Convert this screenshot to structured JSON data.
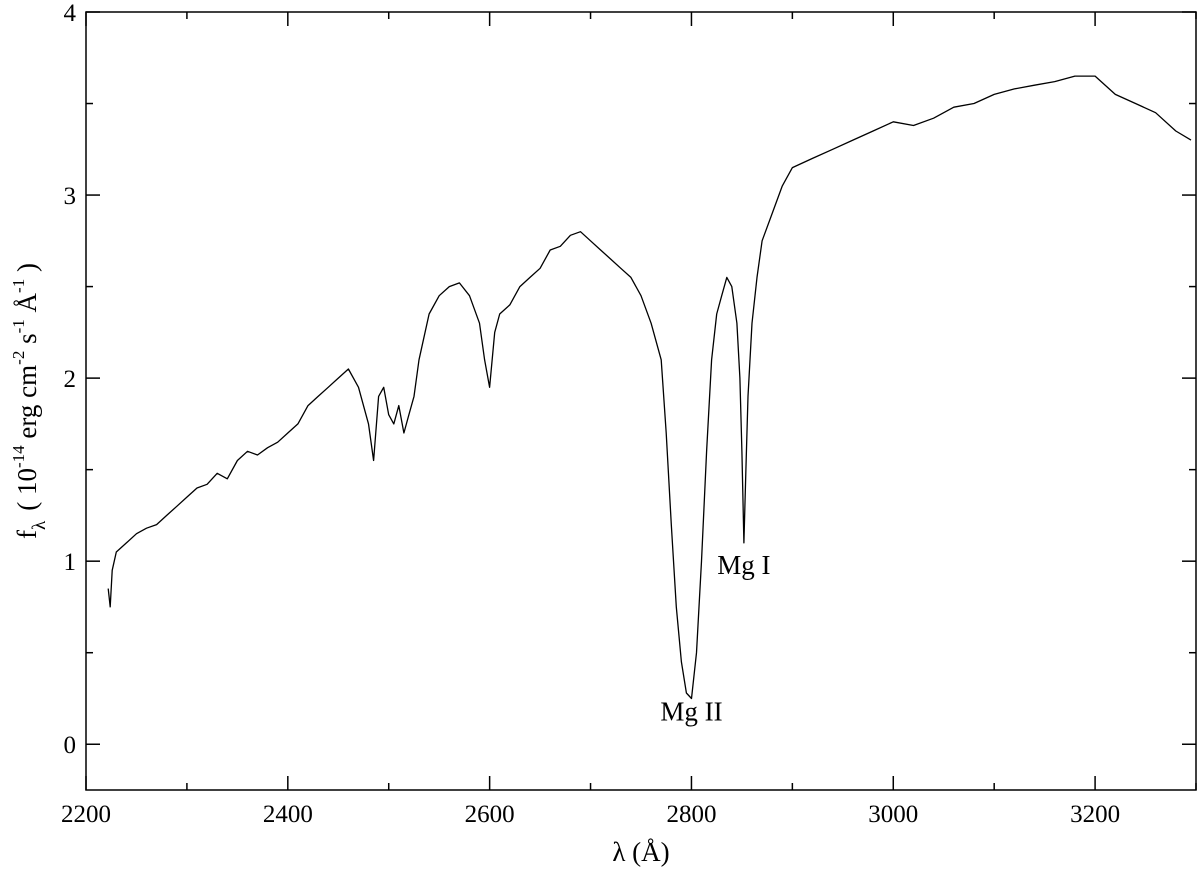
{
  "chart_data": {
    "type": "line",
    "xlabel": "λ (Å)",
    "ylabel": {
      "f": "f",
      "f_sub": "λ",
      "open": "( 10",
      "exp1": "-14",
      "unit1": " erg cm",
      "exp2": "-2",
      "unit2": " s",
      "exp3": "-1",
      "unit3": " Å",
      "exp4": "-1",
      "close": " )"
    },
    "xlim": [
      2200,
      3300
    ],
    "ylim": [
      -0.25,
      4
    ],
    "x_ticks": [
      2200,
      2400,
      2600,
      2800,
      3000,
      3200
    ],
    "y_ticks": [
      0,
      1,
      2,
      3,
      4
    ],
    "grid": false,
    "annotations": [
      {
        "text": "Mg II",
        "x": 2800,
        "y": 0.13
      },
      {
        "text": "Mg I",
        "x": 2852,
        "y": 0.93
      }
    ],
    "series": [
      {
        "color": "#000000",
        "x": [
          2222,
          2224,
          2226,
          2230,
          2240,
          2250,
          2260,
          2270,
          2280,
          2290,
          2300,
          2310,
          2320,
          2330,
          2340,
          2350,
          2360,
          2370,
          2380,
          2390,
          2400,
          2410,
          2420,
          2430,
          2440,
          2450,
          2460,
          2470,
          2480,
          2485,
          2490,
          2495,
          2500,
          2505,
          2510,
          2515,
          2520,
          2525,
          2530,
          2540,
          2550,
          2560,
          2570,
          2580,
          2590,
          2595,
          2600,
          2605,
          2610,
          2620,
          2630,
          2640,
          2650,
          2660,
          2670,
          2680,
          2690,
          2700,
          2710,
          2720,
          2730,
          2740,
          2750,
          2760,
          2770,
          2775,
          2780,
          2785,
          2790,
          2795,
          2800,
          2805,
          2810,
          2815,
          2820,
          2825,
          2830,
          2835,
          2840,
          2845,
          2848,
          2850,
          2852,
          2854,
          2856,
          2860,
          2865,
          2870,
          2880,
          2890,
          2900,
          2920,
          2940,
          2960,
          2980,
          3000,
          3020,
          3040,
          3060,
          3080,
          3100,
          3120,
          3140,
          3160,
          3180,
          3200,
          3220,
          3240,
          3260,
          3280,
          3295
        ],
        "y": [
          0.85,
          0.75,
          0.95,
          1.05,
          1.1,
          1.15,
          1.18,
          1.2,
          1.25,
          1.3,
          1.35,
          1.4,
          1.42,
          1.48,
          1.45,
          1.55,
          1.6,
          1.58,
          1.62,
          1.65,
          1.7,
          1.75,
          1.85,
          1.9,
          1.95,
          2.0,
          2.05,
          1.95,
          1.75,
          1.55,
          1.9,
          1.95,
          1.8,
          1.75,
          1.85,
          1.7,
          1.8,
          1.9,
          2.1,
          2.35,
          2.45,
          2.5,
          2.52,
          2.45,
          2.3,
          2.1,
          1.95,
          2.25,
          2.35,
          2.4,
          2.5,
          2.55,
          2.6,
          2.7,
          2.72,
          2.78,
          2.8,
          2.75,
          2.7,
          2.65,
          2.6,
          2.55,
          2.45,
          2.3,
          2.1,
          1.7,
          1.2,
          0.75,
          0.45,
          0.28,
          0.25,
          0.5,
          1.0,
          1.6,
          2.1,
          2.35,
          2.45,
          2.55,
          2.5,
          2.3,
          2.0,
          1.6,
          1.1,
          1.5,
          1.9,
          2.3,
          2.55,
          2.75,
          2.9,
          3.05,
          3.15,
          3.2,
          3.25,
          3.3,
          3.35,
          3.4,
          3.38,
          3.42,
          3.48,
          3.5,
          3.55,
          3.58,
          3.6,
          3.62,
          3.65,
          3.65,
          3.55,
          3.5,
          3.45,
          3.35,
          3.3
        ]
      }
    ]
  }
}
